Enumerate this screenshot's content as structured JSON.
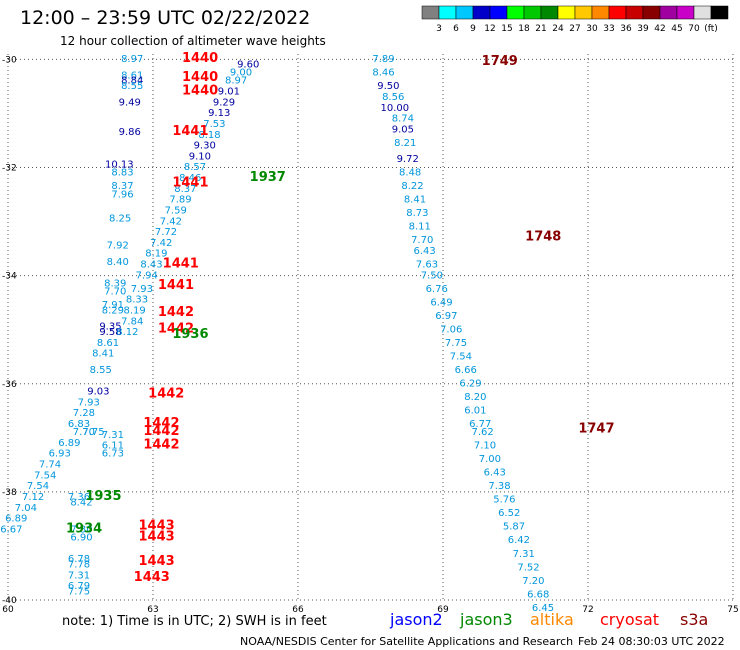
{
  "title": "12:00 – 23:59 UTC 02/22/2022",
  "subtitle": "12 hour collection of altimeter wave heights",
  "colorbar": {
    "colors": [
      "#808080",
      "#00ffff",
      "#00c8ff",
      "#0000c8",
      "#0000ff",
      "#00ff00",
      "#00c800",
      "#008800",
      "#ffff00",
      "#ffc800",
      "#ff8800",
      "#ff0000",
      "#c80000",
      "#880000",
      "#a000a0",
      "#c800c8",
      "#e0e0e0",
      "#000000"
    ],
    "labels": [
      "3",
      "6",
      "9",
      "12",
      "15",
      "18",
      "21",
      "24",
      "27",
      "30",
      "33",
      "36",
      "39",
      "42",
      "45",
      "70",
      "(ft)"
    ]
  },
  "note": "note:  1) Time is in UTC;  2) SWH is in feet",
  "satellites": [
    {
      "name": "jason2",
      "color": "#0000ff"
    },
    {
      "name": "jason3",
      "color": "#008800"
    },
    {
      "name": "altika",
      "color": "#ff8800"
    },
    {
      "name": "cryosat",
      "color": "#ff0000"
    },
    {
      "name": "s3a",
      "color": "#880000"
    }
  ],
  "credit": "NOAA/NESDIS Center for Satellite Applications and Research",
  "timestamp": "Feb 24 08:30:03 UTC 2022",
  "chart_data": {
    "type": "scatter",
    "xlim": [
      60,
      75
    ],
    "ylim": [
      -40,
      -29.9
    ],
    "xticks": [
      60,
      63,
      66,
      69,
      72,
      75
    ],
    "yticks": [
      -30,
      -32,
      -34,
      -36,
      -38,
      -40
    ],
    "grid": true,
    "values": [
      {
        "x": 62.8,
        "y": -30.05,
        "v": "8.97",
        "c": "#0096dc"
      },
      {
        "x": 62.8,
        "y": -30.35,
        "v": "8.61",
        "c": "#0096dc"
      },
      {
        "x": 62.8,
        "y": -30.45,
        "v": "8.84",
        "c": "#0000a0"
      },
      {
        "x": 62.8,
        "y": -30.55,
        "v": "8.55",
        "c": "#0096dc"
      },
      {
        "x": 62.75,
        "y": -30.85,
        "v": "9.49",
        "c": "#0000a0"
      },
      {
        "x": 62.75,
        "y": -31.4,
        "v": "9.86",
        "c": "#0000a0"
      },
      {
        "x": 62.6,
        "y": -32.0,
        "v": "10.13",
        "c": "#0000a0"
      },
      {
        "x": 62.6,
        "y": -32.15,
        "v": "8.83",
        "c": "#0096dc"
      },
      {
        "x": 62.6,
        "y": -32.4,
        "v": "8.37",
        "c": "#0096dc"
      },
      {
        "x": 62.6,
        "y": -32.55,
        "v": "7.96",
        "c": "#0096dc"
      },
      {
        "x": 62.55,
        "y": -33.0,
        "v": "8.25",
        "c": "#0096dc"
      },
      {
        "x": 62.5,
        "y": -33.5,
        "v": "7.92",
        "c": "#0096dc"
      },
      {
        "x": 62.5,
        "y": -33.8,
        "v": "8.40",
        "c": "#0096dc"
      },
      {
        "x": 62.45,
        "y": -34.2,
        "v": "8.39",
        "c": "#0096dc"
      },
      {
        "x": 62.45,
        "y": -34.35,
        "v": "7.70",
        "c": "#0096dc"
      },
      {
        "x": 62.4,
        "y": -34.6,
        "v": "7.91",
        "c": "#0096dc"
      },
      {
        "x": 62.4,
        "y": -34.7,
        "v": "8.29",
        "c": "#0096dc"
      },
      {
        "x": 62.35,
        "y": -35.0,
        "v": "9.35",
        "c": "#0000a0"
      },
      {
        "x": 62.35,
        "y": -35.1,
        "v": "9.58",
        "c": "#0000a0"
      },
      {
        "x": 62.3,
        "y": -35.3,
        "v": "8.61",
        "c": "#0096dc"
      },
      {
        "x": 62.2,
        "y": -35.5,
        "v": "8.41",
        "c": "#0096dc"
      },
      {
        "x": 62.15,
        "y": -35.8,
        "v": "8.55",
        "c": "#0096dc"
      },
      {
        "x": 62.1,
        "y": -36.2,
        "v": "9.03",
        "c": "#0000a0"
      },
      {
        "x": 61.9,
        "y": -36.4,
        "v": "7.93",
        "c": "#0096dc"
      },
      {
        "x": 61.8,
        "y": -36.6,
        "v": "7.28",
        "c": "#0096dc"
      },
      {
        "x": 61.7,
        "y": -36.8,
        "v": "6.83",
        "c": "#0096dc"
      },
      {
        "x": 61.8,
        "y": -36.95,
        "v": "7.70",
        "c": "#0096dc"
      },
      {
        "x": 61.5,
        "y": -37.15,
        "v": "6.89",
        "c": "#0096dc"
      },
      {
        "x": 61.3,
        "y": -37.35,
        "v": "6.93",
        "c": "#0096dc"
      },
      {
        "x": 61.1,
        "y": -37.55,
        "v": "7.74",
        "c": "#0096dc"
      },
      {
        "x": 61.0,
        "y": -37.75,
        "v": "7.54",
        "c": "#0096dc"
      },
      {
        "x": 60.85,
        "y": -37.95,
        "v": "7.54",
        "c": "#0096dc"
      },
      {
        "x": 60.75,
        "y": -38.15,
        "v": "7.12",
        "c": "#0096dc"
      },
      {
        "x": 60.6,
        "y": -38.35,
        "v": "7.04",
        "c": "#0096dc"
      },
      {
        "x": 60.4,
        "y": -38.55,
        "v": "6.89",
        "c": "#0096dc"
      },
      {
        "x": 60.3,
        "y": -38.75,
        "v": "6.67",
        "c": "#0096dc"
      },
      {
        "x": 61.7,
        "y": -38.15,
        "v": "7.36",
        "c": "#0096dc"
      },
      {
        "x": 61.75,
        "y": -38.25,
        "v": "8.42",
        "c": "#0096dc"
      },
      {
        "x": 62.4,
        "y": -37.2,
        "v": "6.11",
        "c": "#0096dc"
      },
      {
        "x": 62.4,
        "y": -37.0,
        "v": "7.31",
        "c": "#0096dc"
      },
      {
        "x": 62.4,
        "y": -37.35,
        "v": "6.73",
        "c": "#0096dc"
      },
      {
        "x": 62.0,
        "y": -36.95,
        "v": "7.75",
        "c": "#0096dc"
      },
      {
        "x": 61.75,
        "y": -38.75,
        "v": "7.30",
        "c": "#0096dc"
      },
      {
        "x": 61.75,
        "y": -38.9,
        "v": "6.90",
        "c": "#0096dc"
      },
      {
        "x": 61.7,
        "y": -39.3,
        "v": "6.78",
        "c": "#0096dc"
      },
      {
        "x": 61.7,
        "y": -39.4,
        "v": "7.78",
        "c": "#0096dc"
      },
      {
        "x": 61.7,
        "y": -39.6,
        "v": "7.31",
        "c": "#0096dc"
      },
      {
        "x": 61.7,
        "y": -39.8,
        "v": "6.79",
        "c": "#0096dc"
      },
      {
        "x": 61.7,
        "y": -39.9,
        "v": "7.75",
        "c": "#0096dc"
      },
      {
        "x": 65.2,
        "y": -30.15,
        "v": "9.60",
        "c": "#0000a0"
      },
      {
        "x": 65.05,
        "y": -30.3,
        "v": "9.00",
        "c": "#0096dc"
      },
      {
        "x": 64.95,
        "y": -30.45,
        "v": "8.97",
        "c": "#0096dc"
      },
      {
        "x": 64.8,
        "y": -30.65,
        "v": "9.01",
        "c": "#0000a0"
      },
      {
        "x": 64.7,
        "y": -30.85,
        "v": "9.29",
        "c": "#0000a0"
      },
      {
        "x": 64.6,
        "y": -31.05,
        "v": "9.13",
        "c": "#0000a0"
      },
      {
        "x": 64.5,
        "y": -31.25,
        "v": "7.53",
        "c": "#0096dc"
      },
      {
        "x": 64.4,
        "y": -31.45,
        "v": "8.18",
        "c": "#0096dc"
      },
      {
        "x": 64.3,
        "y": -31.65,
        "v": "9.30",
        "c": "#0000a0"
      },
      {
        "x": 64.2,
        "y": -31.85,
        "v": "9.10",
        "c": "#0000a0"
      },
      {
        "x": 64.1,
        "y": -32.05,
        "v": "8.57",
        "c": "#0096dc"
      },
      {
        "x": 64.0,
        "y": -32.25,
        "v": "8.46",
        "c": "#0096dc"
      },
      {
        "x": 63.9,
        "y": -32.45,
        "v": "8.37",
        "c": "#0096dc"
      },
      {
        "x": 63.8,
        "y": -32.65,
        "v": "7.89",
        "c": "#0096dc"
      },
      {
        "x": 63.7,
        "y": -32.85,
        "v": "7.59",
        "c": "#0096dc"
      },
      {
        "x": 63.6,
        "y": -33.05,
        "v": "7.42",
        "c": "#0096dc"
      },
      {
        "x": 63.5,
        "y": -33.25,
        "v": "7.72",
        "c": "#0096dc"
      },
      {
        "x": 63.4,
        "y": -33.45,
        "v": "7.42",
        "c": "#0096dc"
      },
      {
        "x": 63.3,
        "y": -33.65,
        "v": "8.19",
        "c": "#0096dc"
      },
      {
        "x": 63.2,
        "y": -33.85,
        "v": "8.43",
        "c": "#0096dc"
      },
      {
        "x": 63.1,
        "y": -34.05,
        "v": "7.94",
        "c": "#0096dc"
      },
      {
        "x": 63.0,
        "y": -34.3,
        "v": "7.93",
        "c": "#0096dc"
      },
      {
        "x": 62.9,
        "y": -34.5,
        "v": "8.33",
        "c": "#0096dc"
      },
      {
        "x": 62.85,
        "y": -34.7,
        "v": "8.19",
        "c": "#0096dc"
      },
      {
        "x": 62.8,
        "y": -34.9,
        "v": "7.84",
        "c": "#0096dc"
      },
      {
        "x": 62.7,
        "y": -35.1,
        "v": "8.12",
        "c": "#0096dc"
      },
      {
        "x": 68.0,
        "y": -30.05,
        "v": "7.89",
        "c": "#0096dc"
      },
      {
        "x": 68.0,
        "y": -30.3,
        "v": "8.46",
        "c": "#0096dc"
      },
      {
        "x": 68.1,
        "y": -30.55,
        "v": "9.50",
        "c": "#0000a0"
      },
      {
        "x": 68.2,
        "y": -30.75,
        "v": "8.56",
        "c": "#0096dc"
      },
      {
        "x": 68.3,
        "y": -30.95,
        "v": "10.00",
        "c": "#0000a0"
      },
      {
        "x": 68.4,
        "y": -31.15,
        "v": "8.74",
        "c": "#0096dc"
      },
      {
        "x": 68.4,
        "y": -31.35,
        "v": "9.05",
        "c": "#0000a0"
      },
      {
        "x": 68.45,
        "y": -31.6,
        "v": "8.21",
        "c": "#0096dc"
      },
      {
        "x": 68.5,
        "y": -31.9,
        "v": "9.72",
        "c": "#0000a0"
      },
      {
        "x": 68.55,
        "y": -32.15,
        "v": "8.48",
        "c": "#0096dc"
      },
      {
        "x": 68.6,
        "y": -32.4,
        "v": "8.22",
        "c": "#0096dc"
      },
      {
        "x": 68.65,
        "y": -32.65,
        "v": "8.41",
        "c": "#0096dc"
      },
      {
        "x": 68.7,
        "y": -32.9,
        "v": "8.73",
        "c": "#0096dc"
      },
      {
        "x": 68.75,
        "y": -33.15,
        "v": "8.11",
        "c": "#0096dc"
      },
      {
        "x": 68.8,
        "y": -33.4,
        "v": "7.70",
        "c": "#0096dc"
      },
      {
        "x": 68.85,
        "y": -33.6,
        "v": "6.43",
        "c": "#0096dc"
      },
      {
        "x": 68.9,
        "y": -33.85,
        "v": "7.63",
        "c": "#0096dc"
      },
      {
        "x": 69.0,
        "y": -34.05,
        "v": "7.50",
        "c": "#0096dc"
      },
      {
        "x": 69.1,
        "y": -34.3,
        "v": "6.76",
        "c": "#0096dc"
      },
      {
        "x": 69.2,
        "y": -34.55,
        "v": "6.49",
        "c": "#0096dc"
      },
      {
        "x": 69.3,
        "y": -34.8,
        "v": "6.97",
        "c": "#0096dc"
      },
      {
        "x": 69.4,
        "y": -35.05,
        "v": "7.06",
        "c": "#0096dc"
      },
      {
        "x": 69.5,
        "y": -35.3,
        "v": "7.75",
        "c": "#0096dc"
      },
      {
        "x": 69.6,
        "y": -35.55,
        "v": "7.54",
        "c": "#0096dc"
      },
      {
        "x": 69.7,
        "y": -35.8,
        "v": "6.66",
        "c": "#0096dc"
      },
      {
        "x": 69.8,
        "y": -36.05,
        "v": "6.29",
        "c": "#0096dc"
      },
      {
        "x": 69.9,
        "y": -36.3,
        "v": "8.20",
        "c": "#0096dc"
      },
      {
        "x": 69.9,
        "y": -36.55,
        "v": "6.01",
        "c": "#0096dc"
      },
      {
        "x": 70.0,
        "y": -36.8,
        "v": "6.77",
        "c": "#0096dc"
      },
      {
        "x": 70.05,
        "y": -36.95,
        "v": "7.62",
        "c": "#0096dc"
      },
      {
        "x": 70.1,
        "y": -37.2,
        "v": "7.10",
        "c": "#0096dc"
      },
      {
        "x": 70.2,
        "y": -37.45,
        "v": "7.00",
        "c": "#0096dc"
      },
      {
        "x": 70.3,
        "y": -37.7,
        "v": "6.43",
        "c": "#0096dc"
      },
      {
        "x": 70.4,
        "y": -37.95,
        "v": "7.38",
        "c": "#0096dc"
      },
      {
        "x": 70.5,
        "y": -38.2,
        "v": "5.76",
        "c": "#0096dc"
      },
      {
        "x": 70.6,
        "y": -38.45,
        "v": "6.52",
        "c": "#0096dc"
      },
      {
        "x": 70.7,
        "y": -38.7,
        "v": "5.87",
        "c": "#0096dc"
      },
      {
        "x": 70.8,
        "y": -38.95,
        "v": "6.42",
        "c": "#0096dc"
      },
      {
        "x": 70.9,
        "y": -39.2,
        "v": "7.31",
        "c": "#0096dc"
      },
      {
        "x": 71.0,
        "y": -39.45,
        "v": "7.52",
        "c": "#0096dc"
      },
      {
        "x": 71.1,
        "y": -39.7,
        "v": "7.20",
        "c": "#0096dc"
      },
      {
        "x": 71.2,
        "y": -39.95,
        "v": "6.68",
        "c": "#0096dc"
      },
      {
        "x": 71.3,
        "y": -40.2,
        "v": "6.45",
        "c": "#0096dc"
      }
    ],
    "passes": [
      {
        "x": 63.6,
        "y": -30.05,
        "t": "1440",
        "c": "#ff0000"
      },
      {
        "x": 63.6,
        "y": -30.4,
        "t": "1440",
        "c": "#ff0000"
      },
      {
        "x": 63.6,
        "y": -30.65,
        "t": "1440",
        "c": "#ff0000"
      },
      {
        "x": 63.4,
        "y": -31.4,
        "t": "1441",
        "c": "#ff0000"
      },
      {
        "x": 63.4,
        "y": -32.35,
        "t": "1441",
        "c": "#ff0000"
      },
      {
        "x": 65.0,
        "y": -32.25,
        "t": "1937",
        "c": "#008800"
      },
      {
        "x": 63.2,
        "y": -33.85,
        "t": "1441",
        "c": "#ff0000"
      },
      {
        "x": 63.1,
        "y": -34.25,
        "t": "1441",
        "c": "#ff0000"
      },
      {
        "x": 63.1,
        "y": -34.75,
        "t": "1442",
        "c": "#ff0000"
      },
      {
        "x": 63.1,
        "y": -35.05,
        "t": "1442",
        "c": "#ff0000"
      },
      {
        "x": 63.4,
        "y": -35.15,
        "t": "1936",
        "c": "#008800"
      },
      {
        "x": 62.9,
        "y": -36.25,
        "t": "1442",
        "c": "#ff0000"
      },
      {
        "x": 62.8,
        "y": -36.8,
        "t": "1442",
        "c": "#ff0000"
      },
      {
        "x": 62.8,
        "y": -36.95,
        "t": "1442",
        "c": "#ff0000"
      },
      {
        "x": 62.8,
        "y": -37.2,
        "t": "1442",
        "c": "#ff0000"
      },
      {
        "x": 61.6,
        "y": -38.15,
        "t": "1935",
        "c": "#008800"
      },
      {
        "x": 61.2,
        "y": -38.75,
        "t": "1934",
        "c": "#008800"
      },
      {
        "x": 62.7,
        "y": -38.7,
        "t": "1443",
        "c": "#ff0000"
      },
      {
        "x": 62.7,
        "y": -38.9,
        "t": "1443",
        "c": "#ff0000"
      },
      {
        "x": 62.7,
        "y": -39.35,
        "t": "1443",
        "c": "#ff0000"
      },
      {
        "x": 62.6,
        "y": -39.65,
        "t": "1443",
        "c": "#ff0000"
      },
      {
        "x": 69.8,
        "y": -30.1,
        "t": "1749",
        "c": "#880000"
      },
      {
        "x": 70.7,
        "y": -33.35,
        "t": "1748",
        "c": "#880000"
      },
      {
        "x": 71.8,
        "y": -36.9,
        "t": "1747",
        "c": "#880000"
      }
    ]
  }
}
